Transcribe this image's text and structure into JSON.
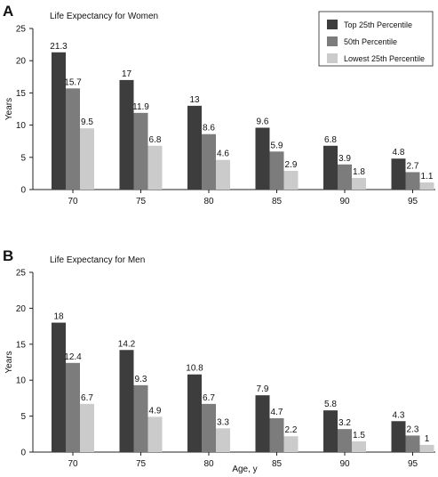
{
  "colors": {
    "top": "#3d3d3d",
    "mid": "#7c7c7c",
    "low": "#cbcbcb"
  },
  "chart_data": [
    {
      "type": "bar",
      "panel": "A",
      "title": "Life Expectancy for Women",
      "xlabel": "",
      "ylabel": "Years",
      "ylim": [
        0,
        25
      ],
      "yticks": [
        "0",
        "5",
        "10",
        "15",
        "20",
        "25"
      ],
      "categories": [
        "70",
        "75",
        "80",
        "85",
        "90",
        "95"
      ],
      "series": [
        {
          "name": "Top 25th Percentile",
          "values": [
            21.3,
            17,
            13,
            9.6,
            6.8,
            4.8
          ],
          "labels": [
            "21.3",
            "17",
            "13",
            "9.6",
            "6.8",
            "4.8"
          ]
        },
        {
          "name": "50th Percentile",
          "values": [
            15.7,
            11.9,
            8.6,
            5.9,
            3.9,
            2.7
          ],
          "labels": [
            "15.7",
            "11.9",
            "8.6",
            "5.9",
            "3.9",
            "2.7"
          ]
        },
        {
          "name": "Lowest 25th Percentile",
          "values": [
            9.5,
            6.8,
            4.6,
            2.9,
            1.8,
            1.1
          ],
          "labels": [
            "9.5",
            "6.8",
            "4.6",
            "2.9",
            "1.8",
            "1.1"
          ]
        }
      ],
      "legend": "top-right",
      "grid": false
    },
    {
      "type": "bar",
      "panel": "B",
      "title": "Life Expectancy for Men",
      "xlabel": "Age, y",
      "ylabel": "Years",
      "ylim": [
        0,
        25
      ],
      "yticks": [
        "0",
        "5",
        "10",
        "15",
        "20",
        "25"
      ],
      "categories": [
        "70",
        "75",
        "80",
        "85",
        "90",
        "95"
      ],
      "series": [
        {
          "name": "Top 25th Percentile",
          "values": [
            18,
            14.2,
            10.8,
            7.9,
            5.8,
            4.3
          ],
          "labels": [
            "18",
            "14.2",
            "10.8",
            "7.9",
            "5.8",
            "4.3"
          ]
        },
        {
          "name": "50th Percentile",
          "values": [
            12.4,
            9.3,
            6.7,
            4.7,
            3.2,
            2.3
          ],
          "labels": [
            "12.4",
            "9.3",
            "6.7",
            "4.7",
            "3.2",
            "2.3"
          ]
        },
        {
          "name": "Lowest 25th Percentile",
          "values": [
            6.7,
            4.9,
            3.3,
            2.2,
            1.5,
            1
          ],
          "labels": [
            "6.7",
            "4.9",
            "3.3",
            "2.2",
            "1.5",
            "1"
          ]
        }
      ],
      "legend": "none",
      "grid": false
    }
  ]
}
